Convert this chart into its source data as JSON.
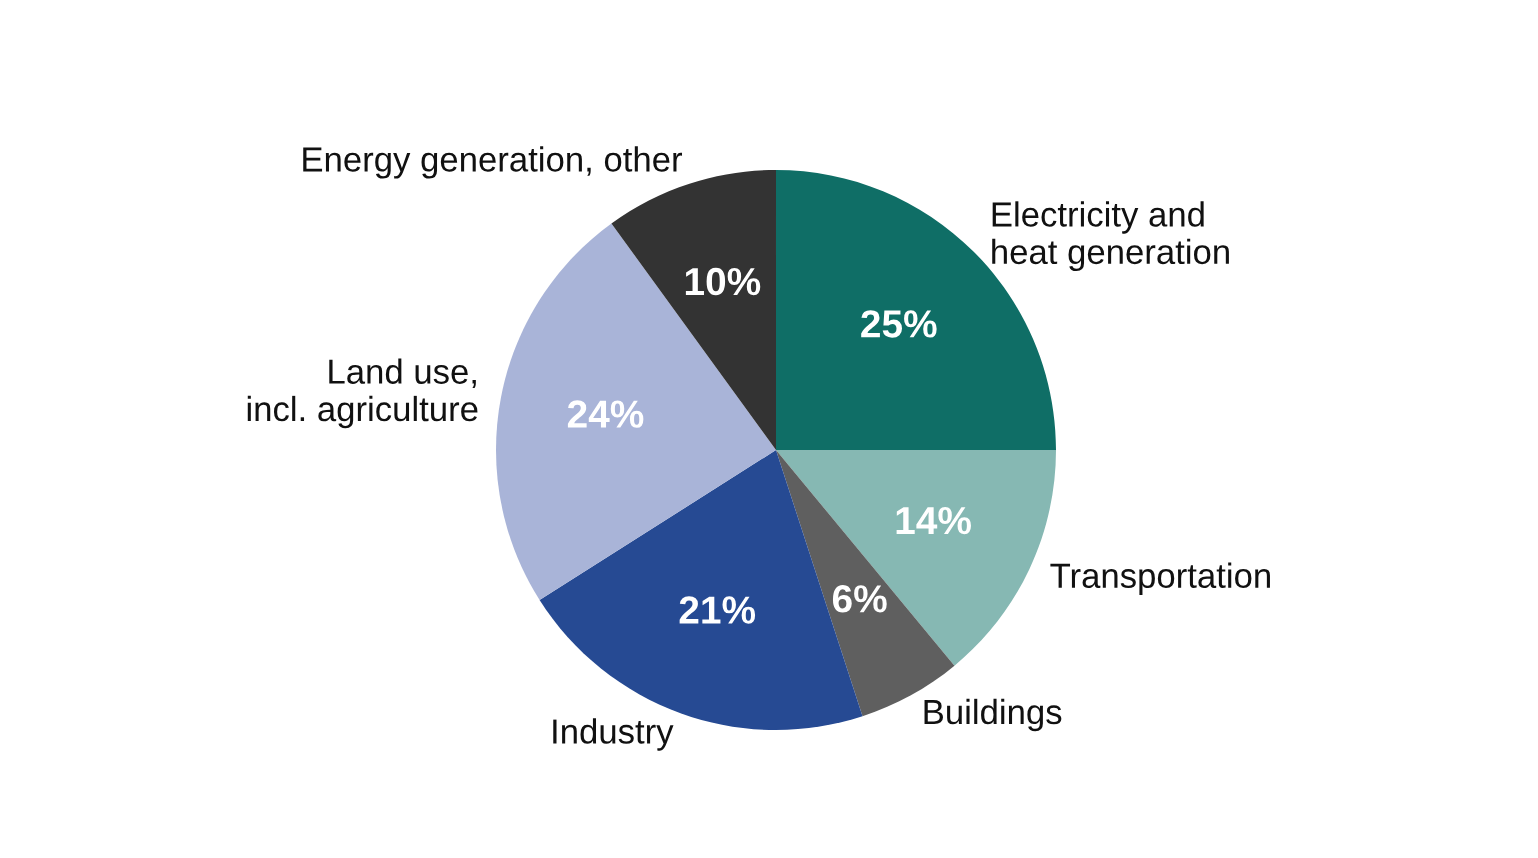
{
  "chart_data": {
    "type": "pie",
    "categories": [
      "Electricity and\nheat generation",
      "Transportation",
      "Buildings",
      "Industry",
      "Land use,\nincl. agriculture",
      "Energy generation, other"
    ],
    "values": [
      25,
      14,
      6,
      21,
      24,
      10
    ],
    "colors": [
      "#0f6e66",
      "#86b8b3",
      "#5f5f5f",
      "#264a93",
      "#a9b4d8",
      "#333333"
    ],
    "value_labels": [
      "25%",
      "14%",
      "6%",
      "21%",
      "24%",
      "10%"
    ]
  }
}
